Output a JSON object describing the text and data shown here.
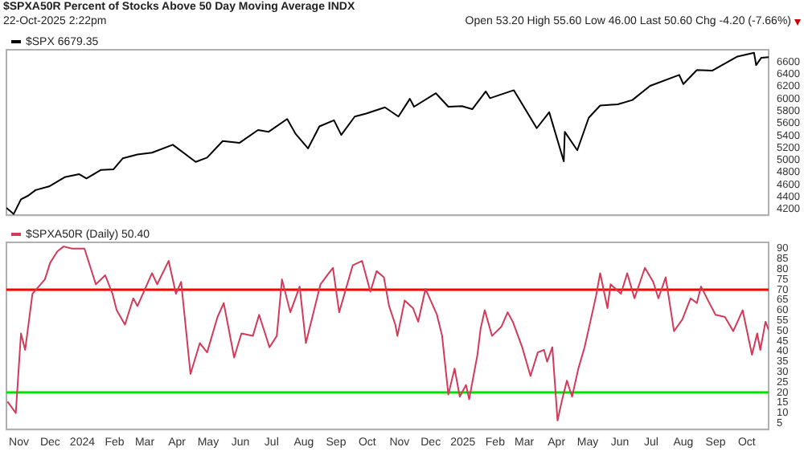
{
  "chart_data": [
    {
      "type": "line",
      "title": "$SPXA50R Percent of Stocks Above 50 Day Moving Average INDX",
      "subtitle": "22-Oct-2025 2:22pm",
      "annotations": [
        "Open 53.20 High 55.60 Low 46.00 Last 50.60 Chg -4.20 (-7.66%)"
      ],
      "legend": "top left",
      "tick_labels": "y",
      "series": [
        {
          "name": "$SPX 6679.35",
          "color": "#000000",
          "x": [
            "2023-10-20",
            "2023-10-27",
            "2023-11-03",
            "2023-11-10",
            "2023-11-17",
            "2023-11-30",
            "2023-12-15",
            "2023-12-29",
            "2024-01-05",
            "2024-01-19",
            "2024-01-31",
            "2024-02-09",
            "2024-02-23",
            "2024-03-08",
            "2024-03-28",
            "2024-04-19",
            "2024-04-30",
            "2024-05-15",
            "2024-05-31",
            "2024-06-18",
            "2024-06-28",
            "2024-07-16",
            "2024-07-24",
            "2024-08-05",
            "2024-08-16",
            "2024-08-30",
            "2024-09-06",
            "2024-09-19",
            "2024-09-30",
            "2024-10-18",
            "2024-10-31",
            "2024-11-11",
            "2024-11-15",
            "2024-12-06",
            "2024-12-18",
            "2024-12-31",
            "2025-01-10",
            "2025-01-23",
            "2025-01-27",
            "2025-02-19",
            "2025-03-13",
            "2025-03-25",
            "2025-04-08",
            "2025-04-09",
            "2025-04-21",
            "2025-05-02",
            "2025-05-13",
            "2025-05-30",
            "2025-06-13",
            "2025-06-30",
            "2025-07-28",
            "2025-08-01",
            "2025-08-14",
            "2025-08-29",
            "2025-09-22",
            "2025-10-08",
            "2025-10-10",
            "2025-10-15",
            "2025-10-22"
          ],
          "values": [
            4220,
            4120,
            4360,
            4420,
            4510,
            4570,
            4720,
            4770,
            4700,
            4840,
            4850,
            5030,
            5090,
            5120,
            5250,
            4970,
            5040,
            5310,
            5280,
            5490,
            5460,
            5670,
            5430,
            5190,
            5550,
            5650,
            5410,
            5710,
            5760,
            5860,
            5710,
            6000,
            5870,
            6090,
            5870,
            5880,
            5830,
            6120,
            6010,
            6140,
            5520,
            5780,
            4980,
            5460,
            5160,
            5690,
            5890,
            5910,
            5980,
            6210,
            6390,
            6240,
            6470,
            6460,
            6690,
            6750,
            6550,
            6670,
            6680
          ]
        }
      ],
      "xlim": [
        "2023-10-20",
        "2025-10-22"
      ],
      "ylim": [
        4100,
        6800
      ],
      "yticks": [
        4200,
        4400,
        4600,
        4800,
        5000,
        5200,
        5400,
        5600,
        5800,
        6000,
        6200,
        6400,
        6600
      ]
    },
    {
      "type": "line",
      "legend": "top left",
      "series": [
        {
          "name": "$SPXA50R (Daily) 50.40",
          "color": "#d23a5a",
          "x": [
            "2023-10-21",
            "2023-10-29",
            "2023-11-03",
            "2023-11-07",
            "2023-11-14",
            "2023-11-26",
            "2023-12-01",
            "2023-12-08",
            "2023-12-14",
            "2023-12-22",
            "2024-01-03",
            "2024-01-14",
            "2024-01-23",
            "2024-01-30",
            "2024-02-03",
            "2024-02-11",
            "2024-02-19",
            "2024-02-23",
            "2024-03-08",
            "2024-03-13",
            "2024-03-24",
            "2024-03-31",
            "2024-04-05",
            "2024-04-14",
            "2024-04-23",
            "2024-04-30",
            "2024-05-10",
            "2024-05-16",
            "2024-05-26",
            "2024-06-02",
            "2024-06-13",
            "2024-06-19",
            "2024-06-29",
            "2024-07-06",
            "2024-07-11",
            "2024-07-19",
            "2024-07-28",
            "2024-08-03",
            "2024-08-17",
            "2024-08-25",
            "2024-08-29",
            "2024-09-04",
            "2024-09-17",
            "2024-09-26",
            "2024-10-04",
            "2024-10-10",
            "2024-10-17",
            "2024-10-22",
            "2024-10-28",
            "2024-10-30",
            "2024-11-06",
            "2024-11-14",
            "2024-11-19",
            "2024-11-26",
            "2024-12-07",
            "2024-12-12",
            "2024-12-18",
            "2024-12-24",
            "2024-12-29",
            "2025-01-04",
            "2025-01-07",
            "2025-01-15",
            "2025-01-18",
            "2025-01-22",
            "2025-01-29",
            "2025-02-07",
            "2025-02-13",
            "2025-02-18",
            "2025-02-27",
            "2025-03-07",
            "2025-03-14",
            "2025-03-20",
            "2025-03-23",
            "2025-03-28",
            "2025-04-02",
            "2025-04-06",
            "2025-04-11",
            "2025-04-16",
            "2025-04-22",
            "2025-04-28",
            "2025-05-04",
            "2025-05-09",
            "2025-05-13",
            "2025-05-20",
            "2025-05-23",
            "2025-06-02",
            "2025-06-08",
            "2025-06-15",
            "2025-06-25",
            "2025-07-03",
            "2025-07-08",
            "2025-07-15",
            "2025-07-23",
            "2025-07-31",
            "2025-08-08",
            "2025-08-14",
            "2025-08-18",
            "2025-08-26",
            "2025-09-01",
            "2025-09-10",
            "2025-09-18",
            "2025-09-27",
            "2025-10-06",
            "2025-10-11",
            "2025-10-14",
            "2025-10-19",
            "2025-10-22"
          ],
          "values": [
            15.6,
            10,
            48.7,
            40.7,
            68,
            75,
            83,
            88.6,
            91,
            90,
            90,
            72.6,
            77,
            68,
            60,
            53,
            65.8,
            62,
            78,
            72.6,
            84,
            68,
            73.8,
            29,
            44,
            39.5,
            56.7,
            63.5,
            37,
            48.7,
            47.5,
            57.8,
            42,
            47.5,
            75,
            59,
            71.5,
            44,
            72.6,
            78,
            80.6,
            59,
            81.8,
            84,
            69,
            79,
            76,
            62,
            53,
            47.5,
            64.7,
            61,
            54.4,
            70.4,
            57.8,
            47.5,
            19,
            31.6,
            18,
            23.6,
            16.7,
            38.4,
            51,
            60,
            47.5,
            52,
            59,
            54.4,
            42,
            28,
            39.5,
            40.7,
            35,
            42,
            6.4,
            15.6,
            25.8,
            18,
            31.6,
            42,
            55.5,
            66.9,
            78,
            61,
            72.6,
            68,
            78,
            65.8,
            80.6,
            73.8,
            65.8,
            76,
            49.8,
            55.5,
            65.8,
            63.5,
            71.5,
            63.5,
            57.8,
            56.7,
            49.8,
            60,
            38.4,
            48.7,
            40.7,
            54.4,
            50.4
          ]
        }
      ],
      "xlim": [
        "2023-10-20",
        "2025-10-22"
      ],
      "xticks": [
        {
          "value": "2023-11-01",
          "label": "Nov"
        },
        {
          "value": "2023-12-01",
          "label": "Dec"
        },
        {
          "value": "2024-01-01",
          "label": "2024"
        },
        {
          "value": "2024-02-01",
          "label": "Feb"
        },
        {
          "value": "2024-03-01",
          "label": "Mar"
        },
        {
          "value": "2024-04-01",
          "label": "Apr"
        },
        {
          "value": "2024-05-01",
          "label": "May"
        },
        {
          "value": "2024-06-01",
          "label": "Jun"
        },
        {
          "value": "2024-07-01",
          "label": "Jul"
        },
        {
          "value": "2024-08-01",
          "label": "Aug"
        },
        {
          "value": "2024-09-01",
          "label": "Sep"
        },
        {
          "value": "2024-10-01",
          "label": "Oct"
        },
        {
          "value": "2024-11-01",
          "label": "Nov"
        },
        {
          "value": "2024-12-01",
          "label": "Dec"
        },
        {
          "value": "2025-01-01",
          "label": "2025"
        },
        {
          "value": "2025-02-01",
          "label": "Feb"
        },
        {
          "value": "2025-03-01",
          "label": "Mar"
        },
        {
          "value": "2025-04-01",
          "label": "Apr"
        },
        {
          "value": "2025-05-01",
          "label": "May"
        },
        {
          "value": "2025-06-01",
          "label": "Jun"
        },
        {
          "value": "2025-07-01",
          "label": "Jul"
        },
        {
          "value": "2025-08-01",
          "label": "Aug"
        },
        {
          "value": "2025-09-01",
          "label": "Sep"
        },
        {
          "value": "2025-10-01",
          "label": "Oct"
        }
      ],
      "ylim": [
        2,
        93
      ],
      "yticks": [
        5,
        10,
        15,
        20,
        25,
        30,
        35,
        40,
        45,
        50,
        55,
        60,
        65,
        70,
        75,
        80,
        85,
        90
      ],
      "ref_lines": [
        {
          "axis": "y",
          "value": 70,
          "color": "#ff0000"
        },
        {
          "axis": "y",
          "value": 20,
          "color": "#00e000"
        }
      ]
    }
  ]
}
